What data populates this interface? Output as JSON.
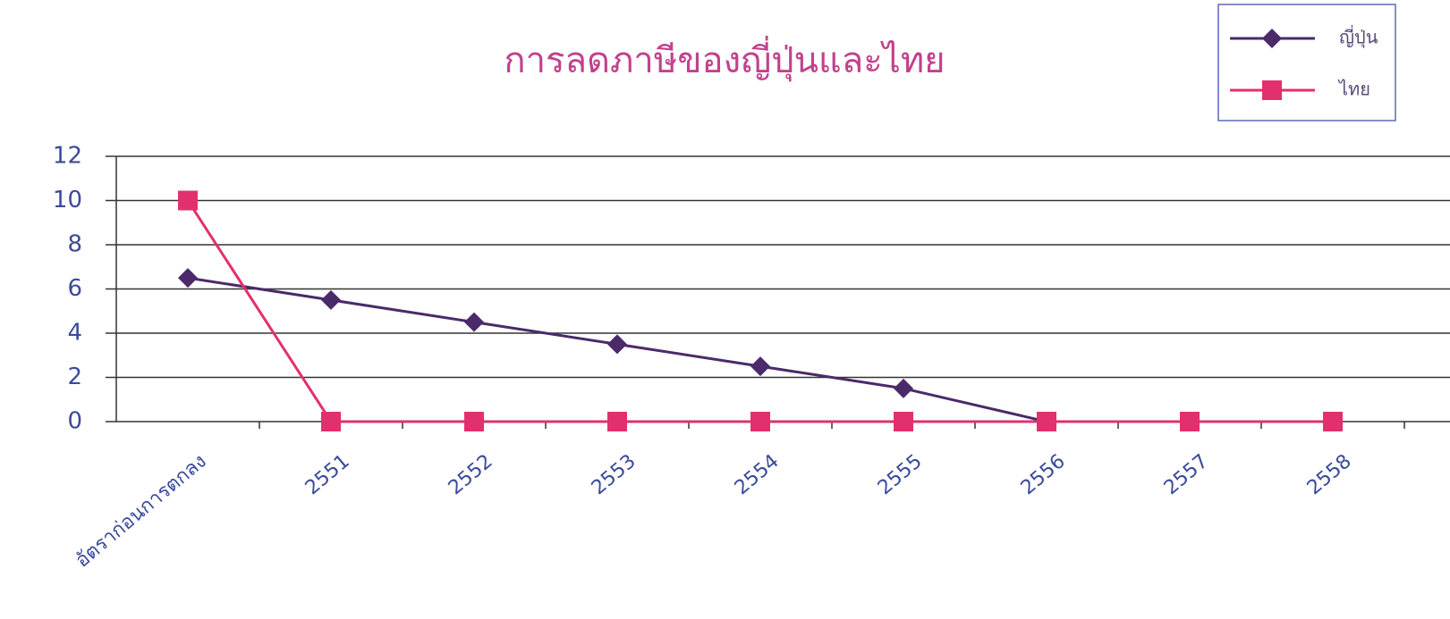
{
  "chart_data": {
    "type": "line",
    "title": "การลดภาษีของญี่ปุ่นและไทย",
    "categories": [
      "อัตราก่อนการตกลง",
      "2551",
      "2552",
      "2553",
      "2554",
      "2555",
      "2556",
      "2557",
      "2558"
    ],
    "series": [
      {
        "name": "ญี่ปุ่น",
        "color": "#4a2a6a",
        "marker": "diamond",
        "values": [
          6.5,
          5.5,
          4.5,
          3.5,
          2.5,
          1.5,
          0,
          null,
          null
        ]
      },
      {
        "name": "ไทย",
        "color": "#e2306e",
        "marker": "square",
        "values": [
          10,
          0,
          0,
          0,
          0,
          0,
          0,
          0,
          0
        ]
      }
    ],
    "ylim": [
      0,
      12
    ],
    "yticks": [
      0,
      2,
      4,
      6,
      8,
      10,
      12
    ],
    "grid": true
  }
}
